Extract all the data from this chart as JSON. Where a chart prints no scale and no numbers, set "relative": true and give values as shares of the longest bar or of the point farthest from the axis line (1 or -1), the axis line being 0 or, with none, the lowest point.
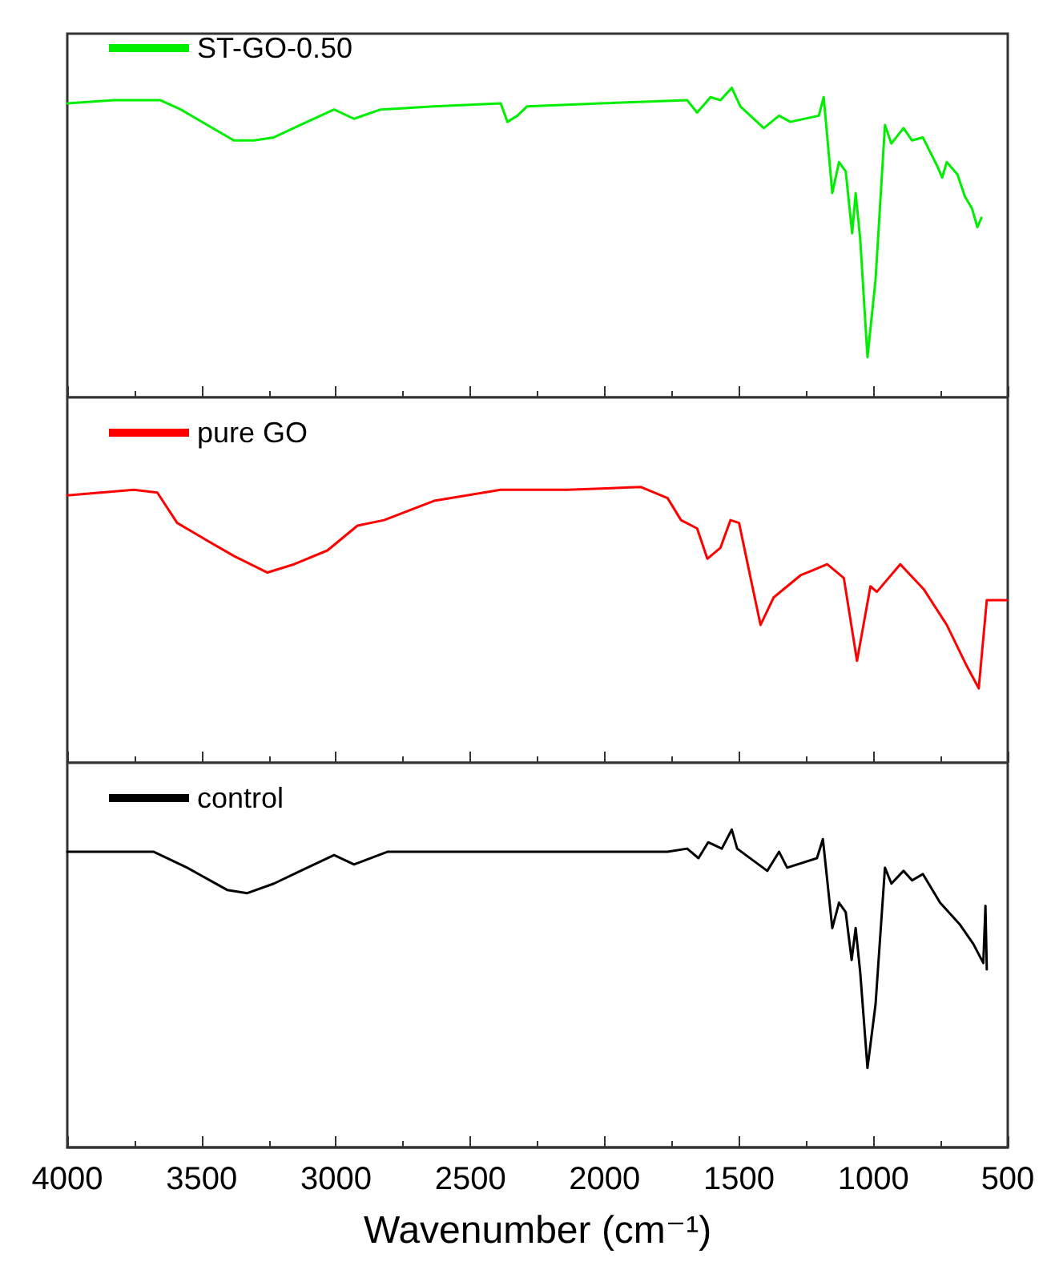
{
  "chart_data": [
    {
      "type": "line",
      "relative": true,
      "legend": "top left",
      "grid": false,
      "marker": "none",
      "line_style": "solid",
      "tick_labels": false,
      "xlim": [
        4000,
        500
      ],
      "xticks": [
        4000,
        {
          "value": 3750,
          "label": null
        },
        3500,
        {
          "value": 3250,
          "label": null
        },
        3000,
        {
          "value": 2750,
          "label": null
        },
        2500,
        {
          "value": 2250,
          "label": null
        },
        2000,
        {
          "value": 1750,
          "label": null
        },
        1500,
        {
          "value": 1250,
          "label": null
        },
        1000,
        {
          "value": 750,
          "label": null
        },
        500
      ],
      "x": [
        4000,
        3826,
        3653,
        3578,
        3479,
        3380,
        3305,
        3231,
        3132,
        3007,
        2933,
        2834,
        2635,
        2387,
        2362,
        2325,
        2289,
        2015,
        1693,
        1656,
        1606,
        1569,
        1527,
        1495,
        1408,
        1351,
        1309,
        1203,
        1185,
        1153,
        1128,
        1103,
        1079,
        1066,
        1049,
        1022,
        992,
        957,
        933,
        888,
        856,
        816,
        764,
        744,
        727,
        687,
        660,
        633,
        613,
        598
      ],
      "series": [
        {
          "name": "ST-GO-0.50",
          "color": "#00ee00",
          "values": [
            0.95,
            0.96,
            0.96,
            0.93,
            0.88,
            0.83,
            0.83,
            0.84,
            0.88,
            0.93,
            0.9,
            0.93,
            0.94,
            0.95,
            0.89,
            0.91,
            0.94,
            0.95,
            0.96,
            0.92,
            0.97,
            0.96,
            1,
            0.94,
            0.87,
            0.91,
            0.89,
            0.91,
            0.97,
            0.66,
            0.76,
            0.73,
            0.53,
            0.66,
            0.51,
            0.13,
            0.38,
            0.88,
            0.82,
            0.87,
            0.83,
            0.84,
            0.75,
            0.71,
            0.76,
            0.72,
            0.65,
            0.61,
            0.55,
            0.58
          ]
        }
      ]
    },
    {
      "type": "line",
      "relative": true,
      "legend": "top left",
      "grid": false,
      "marker": "none",
      "line_style": "solid",
      "tick_labels": false,
      "xlim": [
        4000,
        500
      ],
      "xticks": [
        4000,
        {
          "value": 3750,
          "label": null
        },
        3500,
        {
          "value": 3250,
          "label": null
        },
        3000,
        {
          "value": 2750,
          "label": null
        },
        2500,
        {
          "value": 2250,
          "label": null
        },
        2000,
        {
          "value": 1750,
          "label": null
        },
        1500,
        {
          "value": 1250,
          "label": null
        },
        1000,
        {
          "value": 750,
          "label": null
        },
        500
      ],
      "x": [
        4000,
        3752,
        3665,
        3591,
        3504,
        3380,
        3255,
        3156,
        3032,
        2920,
        2821,
        2635,
        2387,
        2138,
        1865,
        1766,
        1716,
        1656,
        1618,
        1569,
        1532,
        1500,
        1457,
        1420,
        1371,
        1271,
        1172,
        1110,
        1061,
        1011,
        987,
        900,
        813,
        727,
        652,
        608,
        578,
        504
      ],
      "series": [
        {
          "name": "pure GO",
          "color": "#ff0000",
          "values": [
            0.97,
            0.99,
            0.98,
            0.87,
            0.82,
            0.75,
            0.69,
            0.72,
            0.77,
            0.86,
            0.88,
            0.95,
            0.99,
            0.99,
            1,
            0.96,
            0.88,
            0.85,
            0.74,
            0.78,
            0.88,
            0.87,
            0.67,
            0.5,
            0.6,
            0.68,
            0.72,
            0.67,
            0.37,
            0.64,
            0.62,
            0.72,
            0.63,
            0.5,
            0.35,
            0.27,
            0.59,
            0.59
          ]
        }
      ]
    },
    {
      "type": "line",
      "relative": true,
      "legend": "top left",
      "grid": false,
      "marker": "none",
      "line_style": "solid",
      "tick_labels": "x",
      "xlim": [
        4000,
        500
      ],
      "xlabel": "Wavenumber (cm⁻¹)",
      "xticks": [
        4000,
        {
          "value": 3750,
          "label": null
        },
        3500,
        {
          "value": 3250,
          "label": null
        },
        3000,
        {
          "value": 2750,
          "label": null
        },
        2500,
        {
          "value": 2250,
          "label": null
        },
        2000,
        {
          "value": 1750,
          "label": null
        },
        1500,
        {
          "value": 1250,
          "label": null
        },
        1000,
        {
          "value": 750,
          "label": null
        },
        500
      ],
      "x": [
        4000,
        3678,
        3554,
        3405,
        3330,
        3231,
        3132,
        3007,
        2933,
        2809,
        2387,
        1766,
        1693,
        1651,
        1615,
        1564,
        1527,
        1507,
        1395,
        1351,
        1321,
        1210,
        1188,
        1153,
        1128,
        1103,
        1081,
        1066,
        1049,
        1022,
        992,
        957,
        933,
        888,
        856,
        816,
        752,
        677,
        628,
        591,
        583,
        578
      ],
      "series": [
        {
          "name": "control",
          "color": "#000000",
          "values": [
            0.93,
            0.93,
            0.88,
            0.81,
            0.8,
            0.83,
            0.87,
            0.92,
            0.89,
            0.93,
            0.93,
            0.93,
            0.94,
            0.91,
            0.96,
            0.94,
            1,
            0.94,
            0.87,
            0.93,
            0.88,
            0.91,
            0.97,
            0.69,
            0.77,
            0.74,
            0.59,
            0.69,
            0.55,
            0.25,
            0.45,
            0.88,
            0.83,
            0.87,
            0.84,
            0.86,
            0.77,
            0.7,
            0.64,
            0.58,
            0.76,
            0.56
          ]
        }
      ]
    }
  ]
}
